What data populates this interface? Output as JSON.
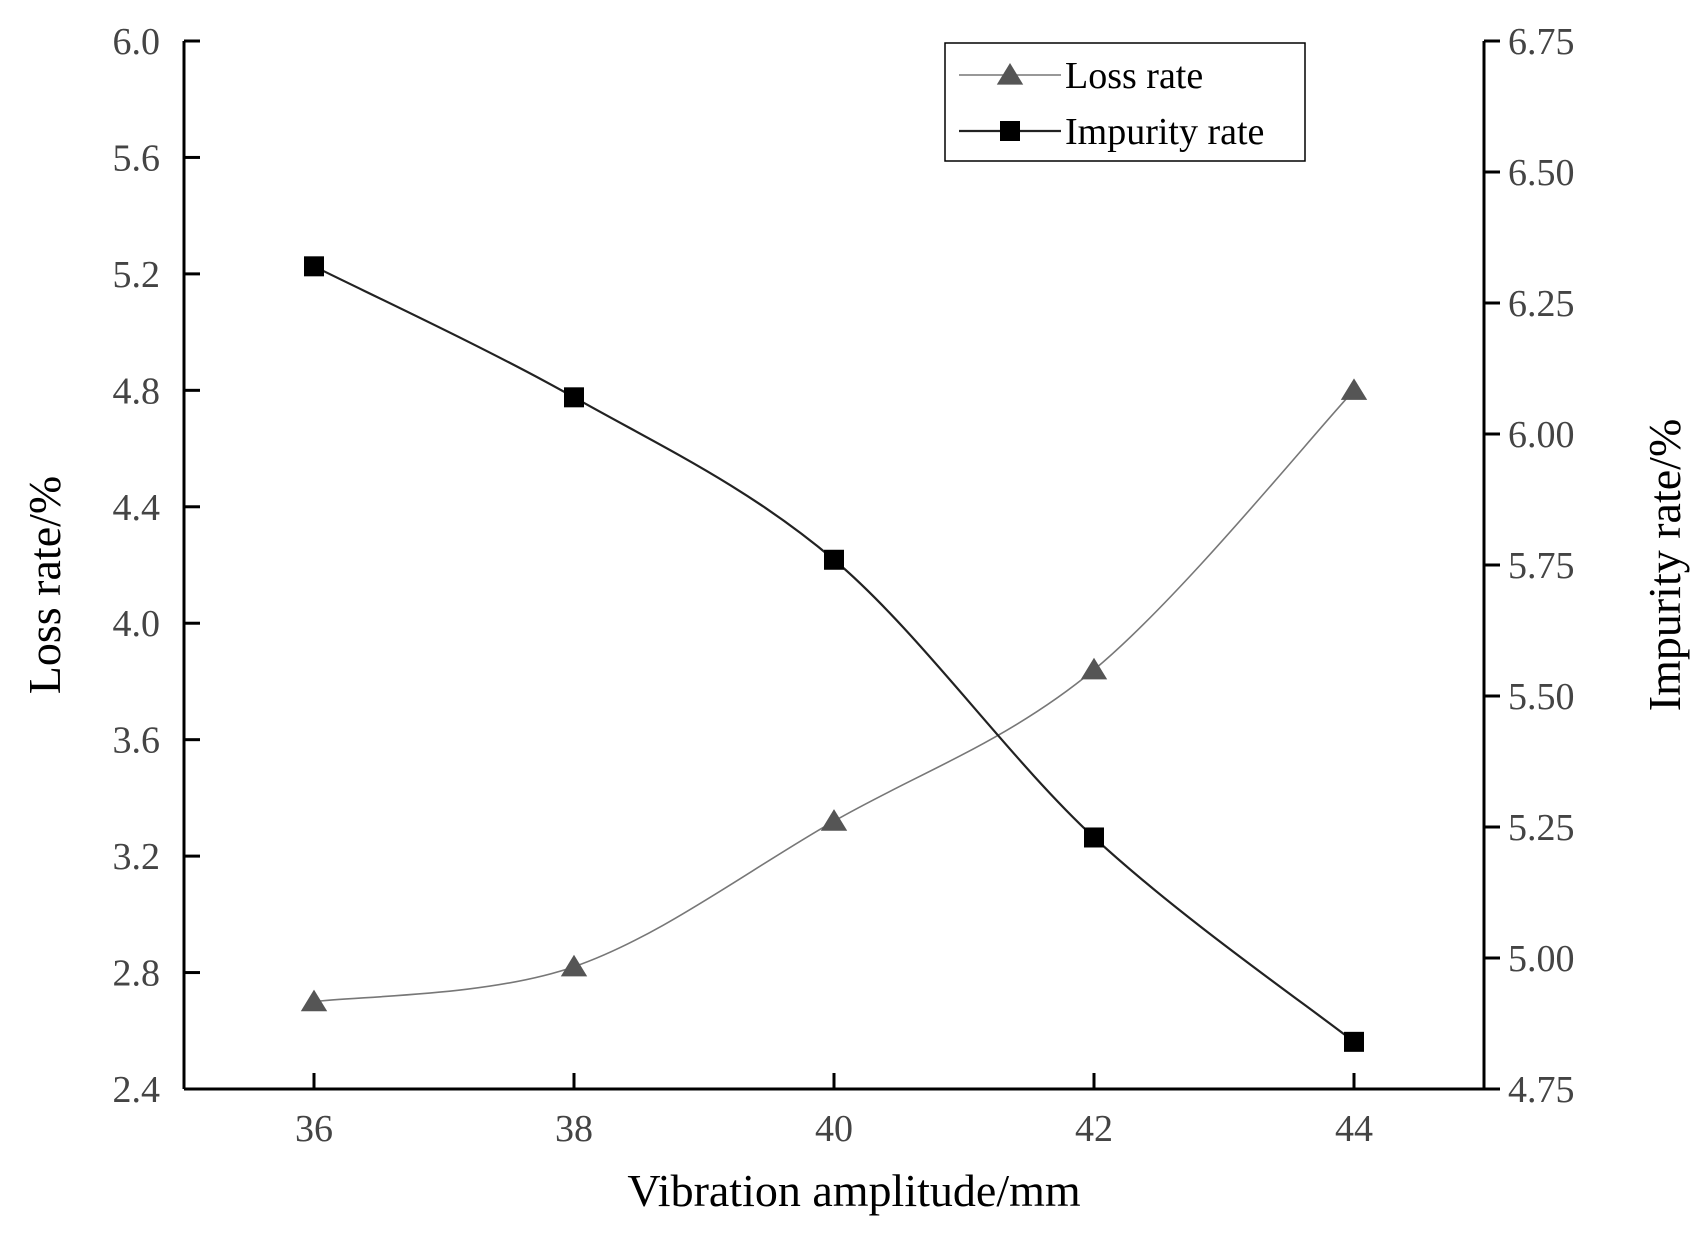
{
  "chart_data": {
    "type": "line",
    "x": [
      36,
      38,
      40,
      42,
      44
    ],
    "xlabel": "Vibration amplitude/mm",
    "xlim": [
      35,
      45
    ],
    "xticks": [
      "36",
      "38",
      "40",
      "42",
      "44"
    ],
    "y_left": {
      "label": "Loss rate/%",
      "lim": [
        2.4,
        6.0
      ],
      "ticks": [
        "2.4",
        "2.8",
        "3.2",
        "3.6",
        "4.0",
        "4.4",
        "4.8",
        "5.2",
        "5.6",
        "6.0"
      ]
    },
    "y_right": {
      "label": "Impurity rate/%",
      "lim": [
        4.75,
        6.75
      ],
      "ticks": [
        "4.75",
        "5.00",
        "5.25",
        "5.50",
        "5.75",
        "6.00",
        "6.25",
        "6.50",
        "6.75"
      ]
    },
    "series": [
      {
        "name": "Loss rate",
        "axis": "left",
        "marker": "triangle",
        "color": "#555555",
        "values": [
          2.7,
          2.82,
          3.32,
          3.84,
          4.8
        ]
      },
      {
        "name": "Impurity rate",
        "axis": "right",
        "marker": "square",
        "color": "#000000",
        "values": [
          6.32,
          6.07,
          5.76,
          5.23,
          4.84
        ]
      }
    ],
    "legend": {
      "position": "top-right"
    },
    "grid": false
  }
}
